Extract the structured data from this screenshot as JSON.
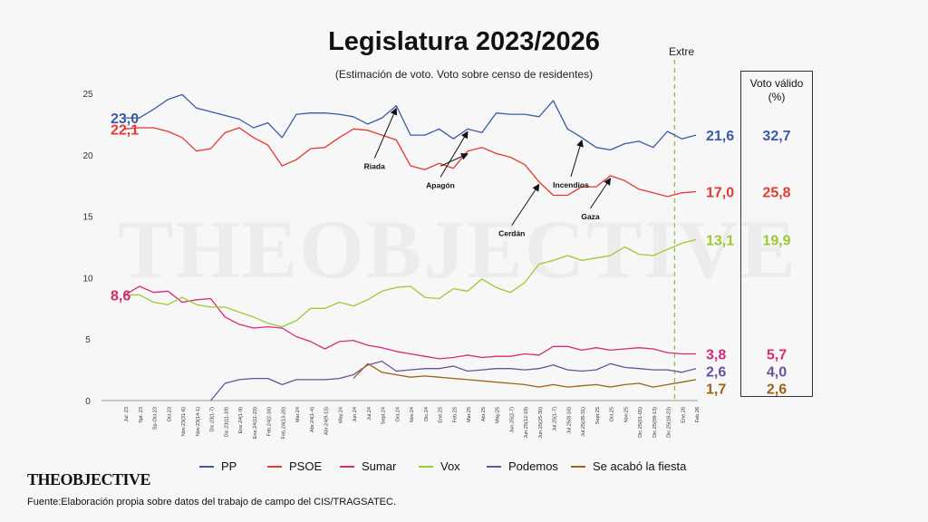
{
  "chart_data": {
    "type": "line",
    "title": "Legislatura 2023/2026",
    "subtitle": "(Estimación de voto. Voto sobre censo de residentes)",
    "ylim": [
      0,
      25
    ],
    "y_ticks": [
      0,
      5,
      10,
      15,
      20,
      25
    ],
    "x": [
      "Jul. 23",
      "Spt. 23",
      "Sp-Oct.23",
      "Oct.23",
      "Nov.23(31-6)",
      "Nov.23(14-1)",
      "Dic.23(1-7)",
      "Dic.23(11-19)",
      "Ene.24(1-9)",
      "Ene.24(11-23)",
      "Feb.24(2-16)",
      "Feb.24(13-20)",
      "Mar.24",
      "Abr.24(1-4)",
      "Abr.24(9-13)",
      "May.24",
      "Jun.24",
      "Jul.24",
      "Sept.24",
      "Oct.24",
      "Nov.24",
      "Dic.24",
      "Ene.25",
      "Feb.25",
      "Mar.25",
      "Abr.25",
      "May.25",
      "Jun.25(2-7)",
      "Jun.25(12-19)",
      "Jun.25(25-30)",
      "Jul.25(1-7)",
      "Jul.25(8-16)",
      "Jul.25(28-31)",
      "Sept.25",
      "Oct.25",
      "Nov.25",
      "Dic.25(01-05)",
      "Dic.25(09-13)",
      "Dic.25(18-23)",
      "Ene.26",
      "Feb.26"
    ],
    "gridlines": false,
    "legend_position": "bottom",
    "series": [
      {
        "name": "PP",
        "color": "#3b5ba5",
        "values": [
          23.0,
          23.0,
          23.7,
          24.5,
          24.9,
          23.8,
          23.5,
          23.2,
          22.9,
          22.2,
          22.6,
          21.4,
          23.3,
          23.4,
          23.4,
          23.3,
          23.1,
          22.5,
          23.0,
          24.0,
          21.6,
          21.6,
          22.1,
          21.3,
          22.1,
          21.8,
          23.4,
          23.3,
          23.3,
          23.1,
          24.4,
          22.1,
          21.4,
          20.6,
          20.4,
          20.9,
          21.1,
          20.6,
          21.9,
          21.3,
          21.6
        ]
      },
      {
        "name": "PSOE",
        "color": "#e23b31",
        "values": [
          22.1,
          22.2,
          22.2,
          21.9,
          21.4,
          20.3,
          20.5,
          21.8,
          22.2,
          21.4,
          20.8,
          19.1,
          19.6,
          20.5,
          20.6,
          21.4,
          22.1,
          22.0,
          21.6,
          21.2,
          19.1,
          18.8,
          19.3,
          18.9,
          20.3,
          20.6,
          20.1,
          19.8,
          19.2,
          17.8,
          16.7,
          16.7,
          17.4,
          17.4,
          18.3,
          17.9,
          17.2,
          16.9,
          16.6,
          16.9,
          17.0
        ]
      },
      {
        "name": "Sumar",
        "color": "#d62a7a",
        "values": [
          8.6,
          9.3,
          8.8,
          8.9,
          8.0,
          8.2,
          8.3,
          6.8,
          6.2,
          5.9,
          6.0,
          5.9,
          5.2,
          4.8,
          4.2,
          4.8,
          4.9,
          4.5,
          4.3,
          4.0,
          3.8,
          3.6,
          3.4,
          3.5,
          3.7,
          3.5,
          3.6,
          3.6,
          3.8,
          3.7,
          4.4,
          4.4,
          4.1,
          4.3,
          4.1,
          4.2,
          4.3,
          4.2,
          3.9,
          3.8,
          3.8
        ]
      },
      {
        "name": "Vox",
        "color": "#9acb2f",
        "values": [
          8.6,
          8.6,
          8.0,
          7.8,
          8.4,
          7.8,
          7.6,
          7.6,
          7.2,
          6.8,
          6.3,
          6.0,
          6.5,
          7.5,
          7.5,
          8.0,
          7.7,
          8.2,
          8.9,
          9.2,
          9.3,
          8.4,
          8.3,
          9.1,
          8.9,
          9.9,
          9.2,
          8.8,
          9.6,
          11.1,
          11.4,
          11.8,
          11.4,
          11.6,
          11.8,
          12.5,
          11.9,
          11.8,
          12.3,
          12.8,
          13.1
        ]
      },
      {
        "name": "Podemos",
        "color": "#6b4fa1",
        "values": [
          null,
          null,
          null,
          null,
          null,
          null,
          0.0,
          1.4,
          1.7,
          1.8,
          1.8,
          1.3,
          1.7,
          1.7,
          1.7,
          1.8,
          2.1,
          2.9,
          3.2,
          2.4,
          2.5,
          2.6,
          2.6,
          2.8,
          2.4,
          2.5,
          2.6,
          2.6,
          2.5,
          2.6,
          2.9,
          2.5,
          2.4,
          2.5,
          3.0,
          2.7,
          2.6,
          2.5,
          2.5,
          2.3,
          2.6
        ]
      },
      {
        "name": "Se acabó la fiesta",
        "color": "#9c6318",
        "values": [
          null,
          null,
          null,
          null,
          null,
          null,
          null,
          null,
          null,
          null,
          null,
          null,
          null,
          null,
          null,
          null,
          1.8,
          3.0,
          2.3,
          2.1,
          1.9,
          2.0,
          1.9,
          1.8,
          1.7,
          1.6,
          1.5,
          1.4,
          1.3,
          1.1,
          1.3,
          1.1,
          1.2,
          1.3,
          1.1,
          1.3,
          1.4,
          1.1,
          1.3,
          1.5,
          1.7
        ]
      }
    ],
    "start_labels": [
      {
        "series": "PP",
        "text": "23,0"
      },
      {
        "series": "PSOE",
        "text": "22,1"
      },
      {
        "series": "Vox",
        "text": "8,6"
      },
      {
        "series": "Sumar",
        "text": "8,6"
      }
    ],
    "end_labels": [
      {
        "series": "PP",
        "text": "21,6",
        "valid": "32,7"
      },
      {
        "series": "PSOE",
        "text": "17,0",
        "valid": "25,8"
      },
      {
        "series": "Vox",
        "text": "13,1",
        "valid": "19,9"
      },
      {
        "series": "Sumar",
        "text": "3,8",
        "valid": "5,7"
      },
      {
        "series": "Podemos",
        "text": "2,6",
        "valid": "4,0"
      },
      {
        "series": "Se acabó la fiesta",
        "text": "1,7",
        "valid": "2,6"
      }
    ],
    "annotations": [
      {
        "text": "Riada",
        "x_index": 19,
        "series": "PP"
      },
      {
        "text": "Apagón",
        "x_index": 24,
        "series": "PP"
      },
      {
        "text": "Apagón",
        "x_index": 24,
        "series": "PSOE"
      },
      {
        "text": "Cerdán",
        "x_index": 29,
        "series": "PSOE"
      },
      {
        "text": "Incendios",
        "x_index": 32,
        "series": "PP"
      },
      {
        "text": "Gaza",
        "x_index": 34,
        "series": "PSOE"
      }
    ],
    "marker_line_label": "Extre",
    "marker_line_index": 38.5
  },
  "valid_vote_box": {
    "title_line1": "Voto válido",
    "title_line2": "(%)"
  },
  "watermark": "THEOBJECTIVE",
  "logo": {
    "text": "THEOBJECTIVE"
  },
  "source": "Fuente:Elaboración propia sobre datos del trabajo de campo del CIS/TRAGSATEC."
}
